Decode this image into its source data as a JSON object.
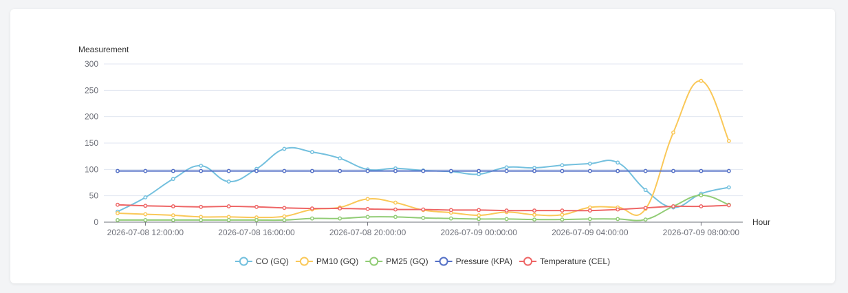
{
  "chart_data": {
    "type": "line",
    "ylabel": "Measurement",
    "xlabel": "Hour",
    "ylim": [
      0,
      300
    ],
    "yticks": [
      "0",
      "50",
      "100",
      "150",
      "200",
      "250",
      "300"
    ],
    "x_tick_labels": [
      "2026-07-08 12:00:00",
      "2026-07-08 16:00:00",
      "2026-07-08 20:00:00",
      "2026-07-09 00:00:00",
      "2026-07-09 04:00:00",
      "2026-07-09 08:00:00"
    ],
    "x": [
      "2026-07-08 11:00:00",
      "2026-07-08 12:00:00",
      "2026-07-08 13:00:00",
      "2026-07-08 14:00:00",
      "2026-07-08 15:00:00",
      "2026-07-08 16:00:00",
      "2026-07-08 17:00:00",
      "2026-07-08 18:00:00",
      "2026-07-08 19:00:00",
      "2026-07-08 20:00:00",
      "2026-07-08 21:00:00",
      "2026-07-08 22:00:00",
      "2026-07-08 23:00:00",
      "2026-07-09 00:00:00",
      "2026-07-09 01:00:00",
      "2026-07-09 02:00:00",
      "2026-07-09 03:00:00",
      "2026-07-09 04:00:00",
      "2026-07-09 05:00:00",
      "2026-07-09 06:00:00",
      "2026-07-09 07:00:00",
      "2026-07-09 08:00:00",
      "2026-07-09 09:00:00"
    ],
    "series": [
      {
        "name": "CO (GQ)",
        "color": "#73c0de",
        "values": [
          20,
          47,
          82,
          107,
          77,
          101,
          139,
          133,
          121,
          100,
          102,
          98,
          96,
          91,
          104,
          103,
          108,
          111,
          113,
          61,
          28,
          54,
          66
        ]
      },
      {
        "name": "PM10 (GQ)",
        "color": "#fac858",
        "values": [
          17,
          15,
          13,
          10,
          10,
          9,
          11,
          24,
          28,
          44,
          37,
          23,
          18,
          13,
          19,
          14,
          14,
          28,
          28,
          25,
          170,
          268,
          154
        ]
      },
      {
        "name": "PM25 (GQ)",
        "color": "#91cc75",
        "values": [
          4,
          4,
          4,
          4,
          4,
          4,
          4,
          7,
          7,
          10,
          10,
          8,
          7,
          6,
          6,
          5,
          5,
          6,
          6,
          5,
          30,
          51,
          33
        ]
      },
      {
        "name": "Pressure (KPA)",
        "color": "#5470c6",
        "values": [
          97,
          97,
          97,
          97,
          97,
          97,
          97,
          97,
          97,
          97,
          97,
          97,
          97,
          97,
          97,
          97,
          97,
          97,
          97,
          97,
          97,
          97,
          97
        ]
      },
      {
        "name": "Temperature (CEL)",
        "color": "#ee6666",
        "values": [
          33,
          31,
          30,
          29,
          30,
          29,
          27,
          26,
          26,
          25,
          24,
          24,
          23,
          23,
          22,
          22,
          22,
          22,
          24,
          27,
          30,
          30,
          32
        ]
      }
    ],
    "grid": true,
    "legend_position": "bottom-center"
  }
}
